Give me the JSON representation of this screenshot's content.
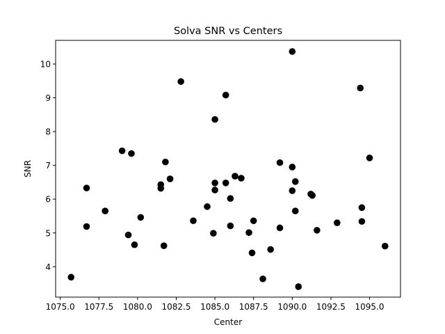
{
  "chart_data": {
    "type": "scatter",
    "title": "Solva SNR vs Centers",
    "xlabel": "Center",
    "ylabel": "SNR",
    "xlim": [
      1074.7,
      1097.0
    ],
    "ylim": [
      3.1,
      10.7
    ],
    "xticks": [
      1075.0,
      1077.5,
      1080.0,
      1082.5,
      1085.0,
      1087.5,
      1090.0,
      1092.5,
      1095.0
    ],
    "xtick_labels": [
      "1075.0",
      "1077.5",
      "1080.0",
      "1082.5",
      "1085.0",
      "1087.5",
      "1090.0",
      "1092.5",
      "1095.0"
    ],
    "yticks": [
      4,
      5,
      6,
      7,
      8,
      9,
      10
    ],
    "ytick_labels": [
      "4",
      "5",
      "6",
      "7",
      "8",
      "9",
      "10"
    ],
    "grid": false,
    "marker_color": "#000000",
    "series": [
      {
        "points": [
          [
            1075.7,
            3.69
          ],
          [
            1076.7,
            6.33
          ],
          [
            1076.7,
            5.19
          ],
          [
            1077.9,
            5.65
          ],
          [
            1079.0,
            7.43
          ],
          [
            1079.4,
            4.94
          ],
          [
            1079.6,
            7.35
          ],
          [
            1079.8,
            4.65
          ],
          [
            1080.2,
            5.46
          ],
          [
            1081.5,
            6.43
          ],
          [
            1081.5,
            6.32
          ],
          [
            1081.7,
            4.62
          ],
          [
            1081.8,
            7.1
          ],
          [
            1082.1,
            6.6
          ],
          [
            1082.8,
            9.48
          ],
          [
            1083.6,
            5.36
          ],
          [
            1084.5,
            5.78
          ],
          [
            1084.9,
            4.99
          ],
          [
            1085.0,
            8.36
          ],
          [
            1085.0,
            6.48
          ],
          [
            1085.0,
            6.27
          ],
          [
            1085.7,
            9.08
          ],
          [
            1085.7,
            6.48
          ],
          [
            1086.0,
            5.21
          ],
          [
            1086.0,
            6.02
          ],
          [
            1086.3,
            6.68
          ],
          [
            1086.7,
            6.62
          ],
          [
            1087.2,
            5.01
          ],
          [
            1087.4,
            4.41
          ],
          [
            1087.5,
            5.36
          ],
          [
            1088.1,
            3.64
          ],
          [
            1088.6,
            4.51
          ],
          [
            1089.2,
            7.08
          ],
          [
            1089.2,
            5.15
          ],
          [
            1090.0,
            10.37
          ],
          [
            1090.0,
            6.95
          ],
          [
            1090.0,
            6.25
          ],
          [
            1090.2,
            6.52
          ],
          [
            1090.2,
            5.65
          ],
          [
            1090.4,
            3.41
          ],
          [
            1091.2,
            6.15
          ],
          [
            1091.3,
            6.11
          ],
          [
            1091.6,
            5.08
          ],
          [
            1092.9,
            5.3
          ],
          [
            1094.4,
            9.29
          ],
          [
            1094.5,
            5.75
          ],
          [
            1094.5,
            5.34
          ],
          [
            1095.0,
            7.22
          ],
          [
            1096.0,
            4.61
          ]
        ]
      }
    ]
  }
}
